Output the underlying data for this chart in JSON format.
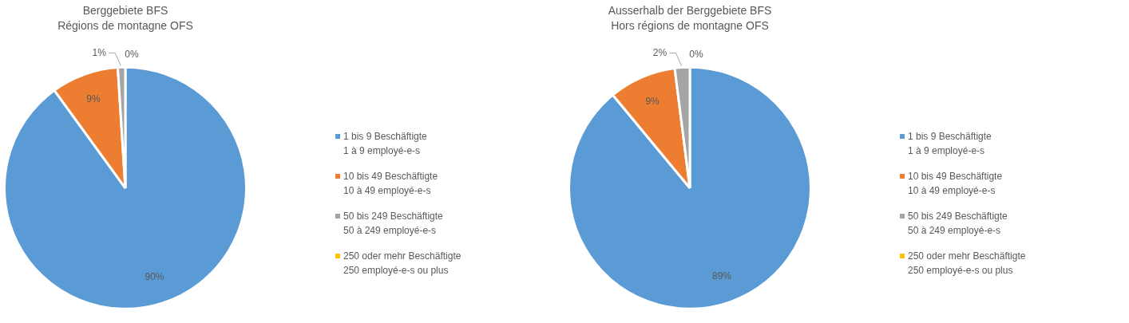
{
  "chart_data": [
    {
      "type": "pie",
      "title": "Berggebiete BFS",
      "subtitle": "Régions de montagne OFS",
      "categories": [
        "1 bis 9 Beschäftigte\n1 à 9 employé-e-s",
        "10 bis 49 Beschäftigte\n10 à 49 employé-e-s",
        "50 bis 249 Beschäftigte\n50 à 249 employé-e-s",
        "250 oder mehr Beschäftigte\n250 employé-e-s ou plus"
      ],
      "values": [
        90,
        9,
        1,
        0
      ],
      "value_labels": [
        "90%",
        "9%",
        "1%",
        "0%"
      ],
      "colors": [
        "#5b9bd5",
        "#ed7d31",
        "#a5a5a5",
        "#ffc000"
      ],
      "legend": "right"
    },
    {
      "type": "pie",
      "title": "Ausserhalb der Berggebiete BFS",
      "subtitle": "Hors régions de montagne OFS",
      "categories": [
        "1 bis 9 Beschäftigte\n1 à 9 employé-e-s",
        "10 bis 49 Beschäftigte\n10 à 49 employé-e-s",
        "50 bis 249 Beschäftigte\n50 à 249 employé-e-s",
        "250 oder mehr Beschäftigte\n250 employé-e-s ou plus"
      ],
      "values": [
        89,
        9,
        2,
        0
      ],
      "value_labels": [
        "89%",
        "9%",
        "2%",
        "0%"
      ],
      "colors": [
        "#5b9bd5",
        "#ed7d31",
        "#a5a5a5",
        "#ffc000"
      ],
      "legend": "right"
    }
  ]
}
